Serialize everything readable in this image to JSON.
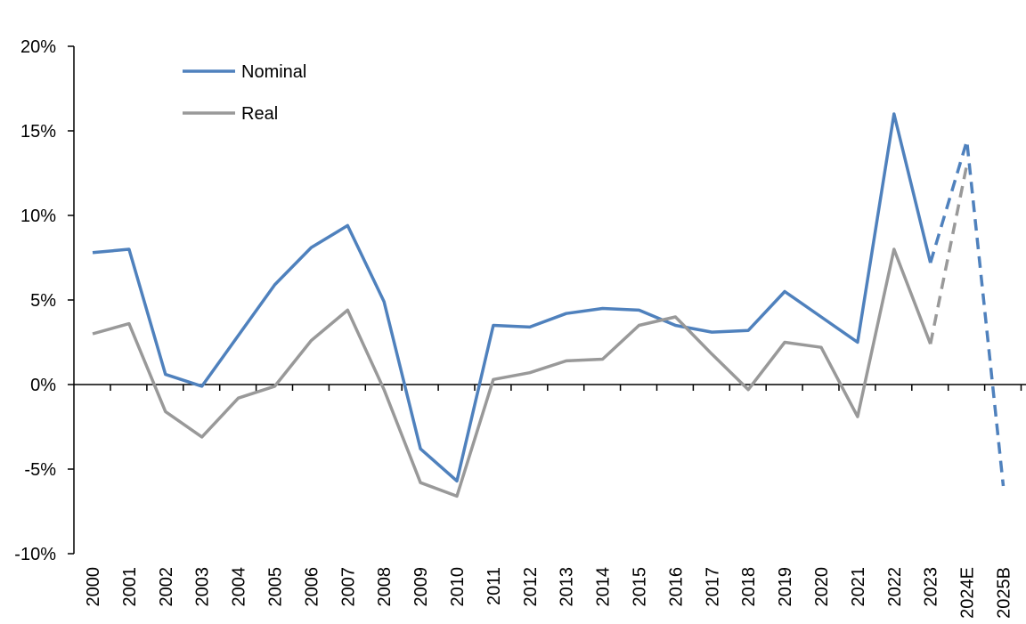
{
  "chart_data": {
    "type": "line",
    "title": "",
    "xlabel": "",
    "ylabel": "",
    "categories": [
      "2000",
      "2001",
      "2002",
      "2003",
      "2004",
      "2005",
      "2006",
      "2007",
      "2008",
      "2009",
      "2010",
      "2011",
      "2012",
      "2013",
      "2014",
      "2015",
      "2016",
      "2017",
      "2018",
      "2019",
      "2020",
      "2021",
      "2022",
      "2023",
      "2024E",
      "2025B"
    ],
    "ylim": [
      -10,
      20
    ],
    "yticks": [
      -10,
      -5,
      0,
      5,
      10,
      15,
      20
    ],
    "ytick_labels": [
      "-10%",
      "-5%",
      "0%",
      "5%",
      "10%",
      "15%",
      "20%"
    ],
    "grid": false,
    "legend_position": "top-left",
    "projection_start_index": 23,
    "series": [
      {
        "name": "Nominal",
        "color": "#4f81bd",
        "values": [
          7.8,
          8.0,
          0.6,
          -0.1,
          2.9,
          5.9,
          8.1,
          9.4,
          4.9,
          -3.8,
          -5.7,
          3.5,
          3.4,
          4.2,
          4.5,
          4.4,
          3.5,
          3.1,
          3.2,
          5.5,
          4.0,
          2.5,
          16.0,
          7.2,
          14.4,
          -6.0
        ]
      },
      {
        "name": "Real",
        "color": "#999999",
        "values": [
          3.0,
          3.6,
          -1.6,
          -3.1,
          -0.8,
          -0.1,
          2.6,
          4.4,
          -0.3,
          -5.8,
          -6.6,
          0.3,
          0.7,
          1.4,
          1.5,
          3.5,
          4.0,
          1.8,
          -0.3,
          2.5,
          2.2,
          -1.9,
          8.0,
          2.4,
          13.0,
          null
        ]
      }
    ]
  }
}
